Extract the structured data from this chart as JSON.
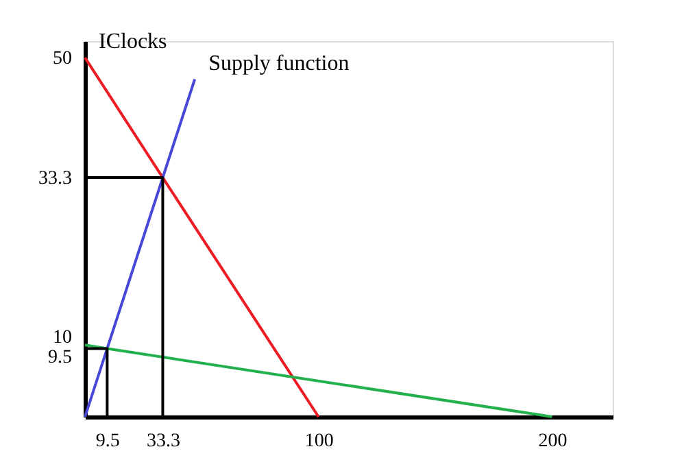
{
  "chart_data": {
    "type": "line",
    "xlim": [
      0,
      226
    ],
    "ylim": [
      0,
      52.3
    ],
    "xticks": [
      9.5,
      33.3,
      100,
      200
    ],
    "yticks": [
      9.5,
      10,
      33.3,
      50
    ],
    "grid": false,
    "legend": false,
    "series": [
      {
        "name": "IClocks",
        "color": "#ed1c24",
        "x": [
          0,
          33.3,
          100
        ],
        "values": [
          50,
          33.3,
          0
        ]
      },
      {
        "name": "Supply function",
        "color": "#4848d8",
        "x": [
          0,
          9.5,
          33.3,
          47
        ],
        "values": [
          0,
          9.5,
          33.3,
          47
        ]
      },
      {
        "color": "#22b14c",
        "x": [
          0,
          9.5,
          200
        ],
        "values": [
          10,
          9.5,
          0
        ]
      },
      {
        "color": "#000000",
        "x": [
          0,
          33.3,
          33.3
        ],
        "values": [
          33.3,
          33.3,
          0
        ]
      },
      {
        "color": "#000000",
        "x": [
          0,
          9.5,
          9.5
        ],
        "values": [
          9.5,
          9.5,
          0
        ]
      }
    ]
  }
}
